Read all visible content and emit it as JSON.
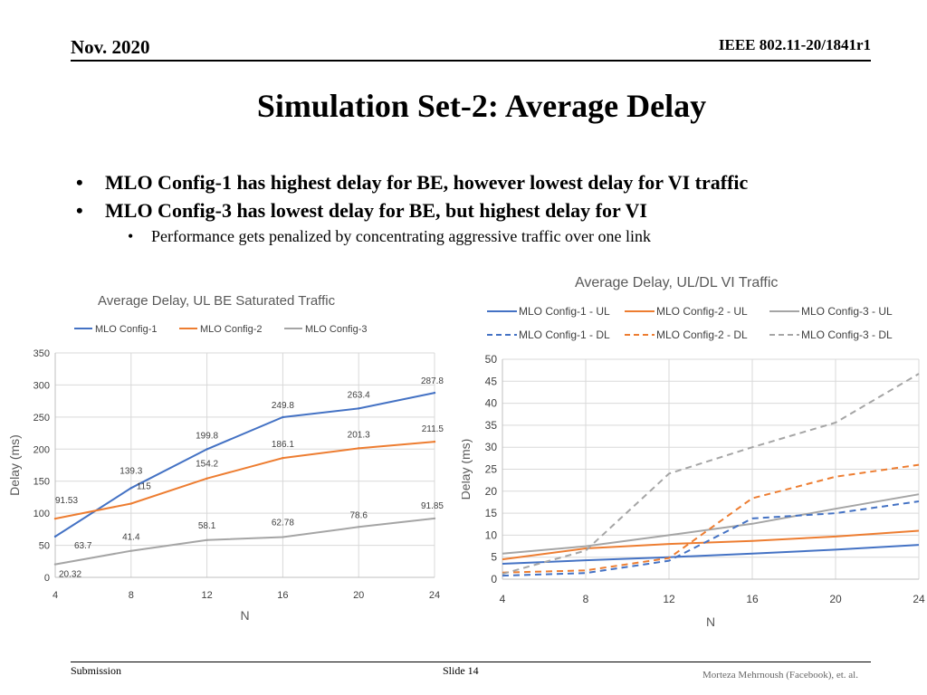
{
  "header": {
    "date": "Nov. 2020",
    "doc_id": "IEEE 802.11-20/1841r1"
  },
  "title": "Simulation Set-2: Average Delay",
  "bullets": [
    {
      "text": "MLO Config-1 has highest delay for BE, however lowest delay for VI traffic",
      "sub": []
    },
    {
      "text": "MLO Config-3 has lowest delay for BE, but highest delay for VI",
      "sub": [
        "Performance gets penalized by concentrating aggressive traffic over one link"
      ]
    }
  ],
  "colors": {
    "config1": "#4472C4",
    "config2": "#ED7D31",
    "config3": "#A5A5A5",
    "title_text": "#595959",
    "grid": "#D9D9D9"
  },
  "chart_data": [
    {
      "type": "line",
      "title": "Average Delay, UL BE Saturated Traffic",
      "xlabel": "N",
      "ylabel": "Delay (ms)",
      "x": [
        4,
        8,
        12,
        16,
        20,
        24
      ],
      "xticks": [
        "4",
        "8",
        "12",
        "16",
        "20",
        "24"
      ],
      "ylim": [
        0,
        350
      ],
      "yticks": [
        0,
        50,
        100,
        150,
        200,
        250,
        300,
        350
      ],
      "grid": true,
      "legend_position": "top",
      "series": [
        {
          "name": "MLO Config-1",
          "color": "#4472C4",
          "dashed": false,
          "values": [
            63.7,
            139.3,
            199.8,
            249.8,
            263.4,
            287.8
          ],
          "labels": [
            "63.7",
            "139.3",
            "199.8",
            "249.8",
            "263.4",
            "287.8"
          ]
        },
        {
          "name": "MLO Config-2",
          "color": "#ED7D31",
          "dashed": false,
          "values": [
            91.53,
            115,
            154.2,
            186.1,
            201.3,
            211.5
          ],
          "labels": [
            "91.53",
            "115",
            "154.2",
            "186.1",
            "201.3",
            "211.5"
          ]
        },
        {
          "name": "MLO Config-3",
          "color": "#A5A5A5",
          "dashed": false,
          "values": [
            20.32,
            41.4,
            58.1,
            62.78,
            78.6,
            91.85
          ],
          "labels": [
            "20.32",
            "41.4",
            "58.1",
            "62.78",
            "78.6",
            "91.85"
          ]
        }
      ]
    },
    {
      "type": "line",
      "title": "Average Delay, UL/DL VI Traffic",
      "xlabel": "N",
      "ylabel": "Delay (ms)",
      "x": [
        4,
        8,
        12,
        16,
        20,
        24
      ],
      "xticks": [
        "4",
        "8",
        "12",
        "16",
        "20",
        "24"
      ],
      "ylim": [
        0,
        50
      ],
      "yticks": [
        0,
        5,
        10,
        15,
        20,
        25,
        30,
        35,
        40,
        45,
        50
      ],
      "grid": true,
      "legend_position": "top",
      "series": [
        {
          "name": "MLO Config-1 - UL",
          "color": "#4472C4",
          "dashed": false,
          "values": [
            3.5,
            4.3,
            5.0,
            5.8,
            6.7,
            7.8
          ]
        },
        {
          "name": "MLO Config-2 - UL",
          "color": "#ED7D31",
          "dashed": false,
          "values": [
            4.5,
            7.0,
            8.0,
            8.7,
            9.7,
            11.0
          ]
        },
        {
          "name": "MLO Config-3 - UL",
          "color": "#A5A5A5",
          "dashed": false,
          "values": [
            5.8,
            7.5,
            10.0,
            12.6,
            16.0,
            19.3
          ]
        },
        {
          "name": "MLO Config-1 - DL",
          "color": "#4472C4",
          "dashed": true,
          "values": [
            0.8,
            1.4,
            4.2,
            13.8,
            15.0,
            17.7
          ]
        },
        {
          "name": "MLO Config-2 - DL",
          "color": "#ED7D31",
          "dashed": true,
          "values": [
            1.5,
            2.0,
            4.8,
            18.4,
            23.3,
            26.0
          ]
        },
        {
          "name": "MLO Config-3 - DL",
          "color": "#A5A5A5",
          "dashed": true,
          "values": [
            1.2,
            6.5,
            24.0,
            30.0,
            35.6,
            46.7
          ]
        }
      ]
    }
  ],
  "footer": {
    "left": "Submission",
    "center": "Slide 14",
    "right": "Morteza Mehrnoush (Facebook), et. al."
  }
}
